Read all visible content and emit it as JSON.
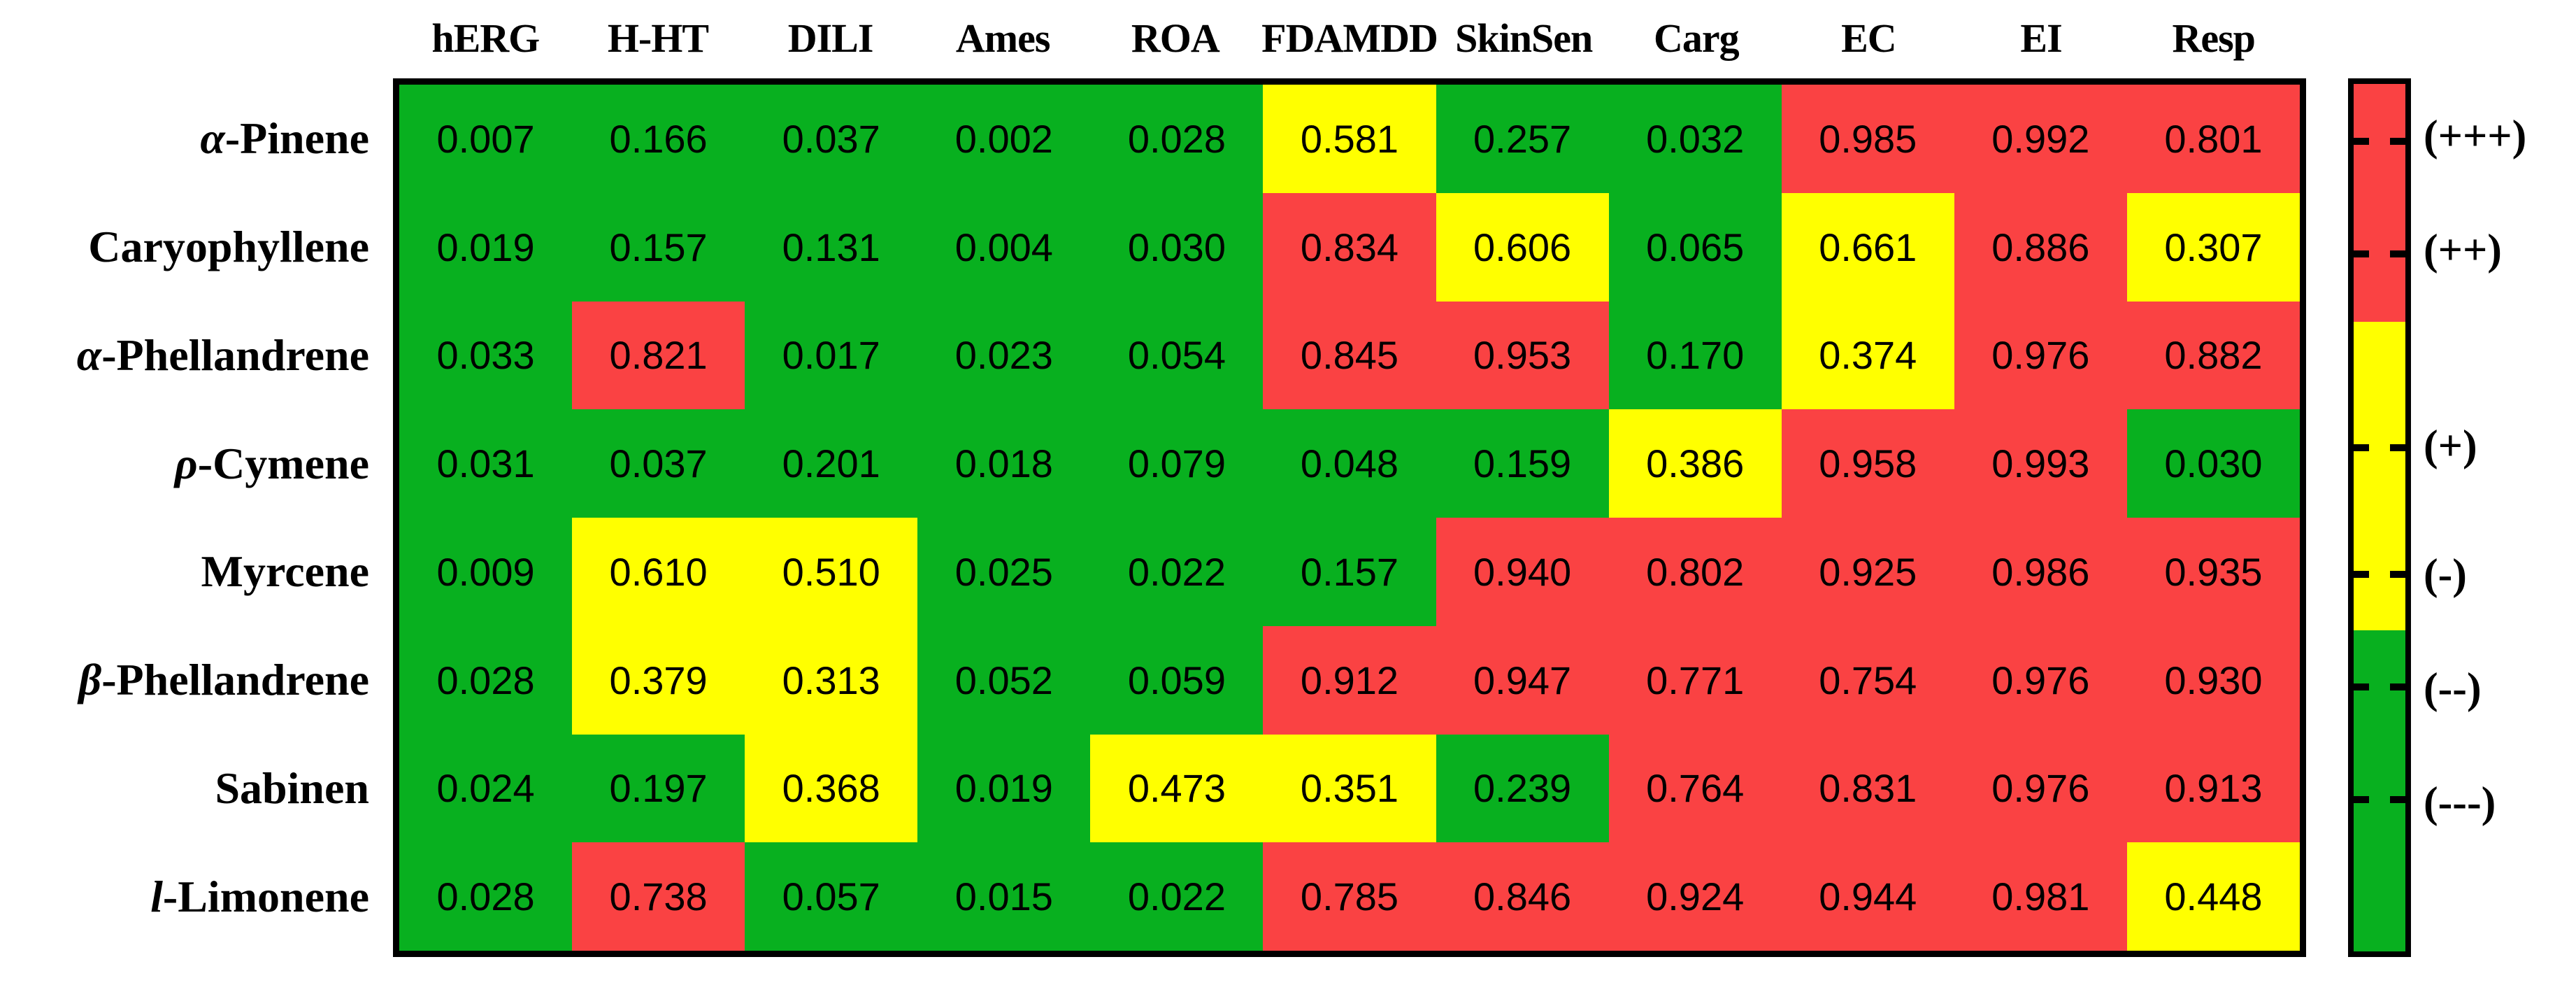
{
  "chart_data": {
    "type": "heatmap",
    "title": "",
    "columns": [
      "hERG",
      "H-HT",
      "DILI",
      "Ames",
      "ROA",
      "FDAMDD",
      "SkinSen",
      "Carg",
      "EC",
      "EI",
      "Resp"
    ],
    "rows": [
      {
        "label_prefix": "α",
        "label_rest": "-Pinene",
        "values": [
          "0.007",
          "0.166",
          "0.037",
          "0.002",
          "0.028",
          "0.581",
          "0.257",
          "0.032",
          "0.985",
          "0.992",
          "0.801"
        ],
        "levels": [
          "g",
          "g",
          "g",
          "g",
          "g",
          "y",
          "g",
          "g",
          "r",
          "r",
          "r"
        ]
      },
      {
        "label_prefix": "",
        "label_rest": "Caryophyllene",
        "values": [
          "0.019",
          "0.157",
          "0.131",
          "0.004",
          "0.030",
          "0.834",
          "0.606",
          "0.065",
          "0.661",
          "0.886",
          "0.307"
        ],
        "levels": [
          "g",
          "g",
          "g",
          "g",
          "g",
          "r",
          "y",
          "g",
          "y",
          "r",
          "y"
        ]
      },
      {
        "label_prefix": "α",
        "label_rest": "-Phellandrene",
        "values": [
          "0.033",
          "0.821",
          "0.017",
          "0.023",
          "0.054",
          "0.845",
          "0.953",
          "0.170",
          "0.374",
          "0.976",
          "0.882"
        ],
        "levels": [
          "g",
          "r",
          "g",
          "g",
          "g",
          "r",
          "r",
          "g",
          "y",
          "r",
          "r"
        ]
      },
      {
        "label_prefix": "ρ",
        "label_rest": "-Cymene",
        "values": [
          "0.031",
          "0.037",
          "0.201",
          "0.018",
          "0.079",
          "0.048",
          "0.159",
          "0.386",
          "0.958",
          "0.993",
          "0.030"
        ],
        "levels": [
          "g",
          "g",
          "g",
          "g",
          "g",
          "g",
          "g",
          "y",
          "r",
          "r",
          "g"
        ]
      },
      {
        "label_prefix": "",
        "label_rest": "Myrcene",
        "values": [
          "0.009",
          "0.610",
          "0.510",
          "0.025",
          "0.022",
          "0.157",
          "0.940",
          "0.802",
          "0.925",
          "0.986",
          "0.935"
        ],
        "levels": [
          "g",
          "y",
          "y",
          "g",
          "g",
          "g",
          "r",
          "r",
          "r",
          "r",
          "r"
        ]
      },
      {
        "label_prefix": "β",
        "label_rest": "-Phellandrene",
        "values": [
          "0.028",
          "0.379",
          "0.313",
          "0.052",
          "0.059",
          "0.912",
          "0.947",
          "0.771",
          "0.754",
          "0.976",
          "0.930"
        ],
        "levels": [
          "g",
          "y",
          "y",
          "g",
          "g",
          "r",
          "r",
          "r",
          "r",
          "r",
          "r"
        ]
      },
      {
        "label_prefix": "",
        "label_rest": "Sabinen",
        "values": [
          "0.024",
          "0.197",
          "0.368",
          "0.019",
          "0.473",
          "0.351",
          "0.239",
          "0.764",
          "0.831",
          "0.976",
          "0.913"
        ],
        "levels": [
          "g",
          "g",
          "y",
          "g",
          "y",
          "y",
          "g",
          "r",
          "r",
          "r",
          "r"
        ]
      },
      {
        "label_prefix": "l",
        "label_rest": "-Limonene",
        "values": [
          "0.028",
          "0.738",
          "0.057",
          "0.015",
          "0.022",
          "0.785",
          "0.846",
          "0.924",
          "0.944",
          "0.981",
          "0.448"
        ],
        "levels": [
          "g",
          "r",
          "g",
          "g",
          "g",
          "r",
          "r",
          "r",
          "r",
          "r",
          "y"
        ]
      }
    ],
    "colors": {
      "g": "#08B01F",
      "y": "#FFFF00",
      "r": "#FA4243",
      "border": "#000000"
    },
    "legend": {
      "position": "right",
      "red_end_pct": 27.4,
      "yellow_end_pct": 63.0,
      "entries": [
        {
          "label": "(+++)",
          "pos_pct": 6.6,
          "level": "r"
        },
        {
          "label": "(++)",
          "pos_pct": 19.6,
          "level": "r"
        },
        {
          "label": "(+)",
          "pos_pct": 41.9,
          "level": "y"
        },
        {
          "label": "(-)",
          "pos_pct": 56.5,
          "level": "y"
        },
        {
          "label": "(--)",
          "pos_pct": 69.5,
          "level": "g"
        },
        {
          "label": "(---)",
          "pos_pct": 82.5,
          "level": "g"
        }
      ]
    },
    "grid": false,
    "xlabel": "",
    "ylabel": ""
  }
}
